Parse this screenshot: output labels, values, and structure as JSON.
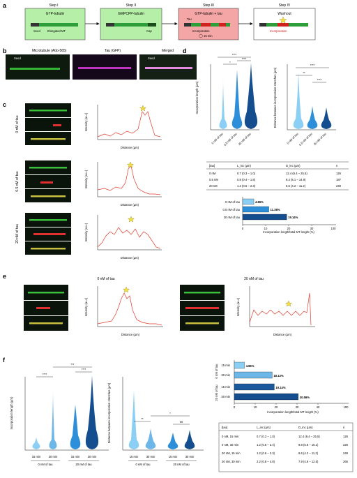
{
  "panel_a": {
    "letter": "a",
    "steps": [
      {
        "title": "Step I",
        "box_label": "GTP-tubulin",
        "sub_labels": [
          "Seed",
          "Elongated MT"
        ],
        "fill": "#b6f0a8"
      },
      {
        "title": "Step II",
        "box_label": "GMPCPP-tubulin",
        "sub_labels": [
          "Cap"
        ],
        "fill": "#b6f0a8"
      },
      {
        "title": "Step III",
        "box_label": "GTP-tubulin + tau",
        "sub_labels": [
          "Tau",
          "Incorporation",
          "15 min"
        ],
        "fill": "#f4a5a5"
      },
      {
        "title": "Step IV",
        "box_label": "Washout",
        "sub_labels": [
          "Incorporation"
        ],
        "fill": "#ffffff"
      }
    ]
  },
  "panel_b": {
    "letter": "b",
    "labels": [
      "Microtubule (Atto-565)",
      "Tau (GFP)",
      "Merged"
    ],
    "seed_label": "Seed"
  },
  "panel_c": {
    "letter": "c",
    "rows": [
      {
        "condition": "0 nM of tau",
        "xlabel": "Distance (µm)",
        "ylabel": "Intensity (a.u.)",
        "xticks": [
          "0",
          "2",
          "4",
          "6"
        ],
        "yticks": [
          "0",
          "20",
          "40",
          "60",
          "80",
          "100"
        ]
      },
      {
        "condition": "0.5 nM of tau",
        "xlabel": "Distance (µm)",
        "ylabel": "Intensity (a.u.)",
        "xticks": [
          "0",
          "2",
          "4",
          "6",
          "8"
        ],
        "yticks": [
          "0",
          "10",
          "20",
          "30",
          "40",
          "50",
          "60",
          "70",
          "80",
          "90",
          "100"
        ]
      },
      {
        "condition": "20 nM of tau",
        "xlabel": "Distance (µm)",
        "ylabel": "Intensity (a.u.)",
        "xticks": [
          "0",
          "1",
          "2",
          "3",
          "4",
          "5",
          "6",
          "7"
        ],
        "yticks": [
          "0",
          "20",
          "40",
          "60",
          "80"
        ]
      }
    ]
  },
  "panel_d": {
    "letter": "d",
    "violin1_ylabel": "Incorporation length (µm)",
    "violin1_yticks": [
      "0",
      "2",
      "4",
      "6",
      "8"
    ],
    "violin2_ylabel": "Distance between incorporation stretches (µm)",
    "violin2_yticks": [
      "0",
      "50",
      "100",
      "150",
      "200",
      "250"
    ],
    "categories": [
      "0 nM of tau",
      "0.5 nM of tau",
      "20 nM of tau"
    ],
    "sig1": [
      "****",
      "*",
      "****"
    ],
    "sig2": [
      "****",
      "**",
      "****"
    ],
    "table_headers": [
      "[tau]",
      "L_inc (µm)",
      "D_inc (µm)",
      "n"
    ],
    "table_rows": [
      [
        "0 nM",
        "0.7 (0.3 – 1.0)",
        "12.4 (6.4 – 25.5)",
        "126"
      ],
      [
        "0.5 nM",
        "0.8 (0.4 – 1.8)",
        "8.4 (5.1 – 14.9)",
        "187"
      ],
      [
        "20 nM",
        "1.2 (0.6 – 2.3)",
        "6.6 (4.2 – 11.2)",
        "249"
      ]
    ],
    "bars": [
      {
        "label": "0 nM of tau",
        "value": 4.86,
        "text": "4.86%"
      },
      {
        "label": "0.5 nM of tau",
        "value": 11.38,
        "text": "11.38%"
      },
      {
        "label": "20 nM of tau",
        "value": 19.14,
        "text": "19.14%"
      }
    ],
    "bar_xticks": [
      "0",
      "10",
      "20",
      "30",
      "100"
    ],
    "bar_xlabel": "Incorporation length/total MT length (%)"
  },
  "panel_e": {
    "letter": "e",
    "titles": [
      "0 nM of tau",
      "20 nM of tau"
    ],
    "xlabel": "Distance (µm)",
    "ylabel": "Intensity (a.u.)",
    "left_xticks": [
      "0",
      "2",
      "4",
      "6",
      "8",
      "10"
    ],
    "left_yticks": [
      "0",
      "20",
      "40",
      "60",
      "80",
      "100"
    ],
    "right_xticks": [
      "0",
      "1",
      "2",
      "3",
      "4",
      "5",
      "6",
      "7",
      "8",
      "9"
    ],
    "right_yticks": [
      "0",
      "20",
      "40",
      "60",
      "80",
      "100",
      "120"
    ]
  },
  "panel_f": {
    "letter": "f",
    "violin1_ylabel": "Incorporation length (µm)",
    "violin1_yticks": [
      "0",
      "5",
      "10",
      "15",
      "20",
      "25"
    ],
    "violin2_ylabel": "Distance between incorporation stretches (µm)",
    "violin2_yticks": [
      "0",
      "50",
      "100",
      "150",
      "200",
      "250"
    ],
    "time_labels": [
      "15 min",
      "30 min",
      "15 min",
      "30 min"
    ],
    "group_labels": [
      "0 nM of tau",
      "20 nM of tau"
    ],
    "sig1": [
      "****",
      "***",
      "****"
    ],
    "sig2": [
      "**",
      "*",
      "ns"
    ],
    "bars": [
      {
        "group": "0 nM of tau",
        "time": "15 min",
        "value": 4.86,
        "text": "4.86%"
      },
      {
        "group": "0 nM of tau",
        "time": "30 min",
        "value": 18.13,
        "text": "18.13%"
      },
      {
        "group": "20 nM of tau",
        "time": "15 min",
        "value": 19.14,
        "text": "19.14%"
      },
      {
        "group": "20 nM of tau",
        "time": "30 min",
        "value": 30.59,
        "text": "30.59%"
      }
    ],
    "bar_xticks": [
      "0",
      "10",
      "20",
      "30",
      "40",
      "100"
    ],
    "bar_xlabel": "Incorporation length/total MT length (%)",
    "table_headers": [
      "[tau]",
      "L_inc (µm)",
      "D_inc (µm)",
      "n"
    ],
    "table_rows": [
      [
        "0 nM, 15 min",
        "0.7 (0.3 – 1.0)",
        "12.4 (6.4 – 25.5)",
        "126"
      ],
      [
        "0 nM, 30 min",
        "1.2 (0.5 – 3.4)",
        "9.8 (5.8 – 15.1)",
        "226"
      ],
      [
        "20 nM, 15 min",
        "1.2 (0.6 – 2.3)",
        "6.6 (4.2 – 11.2)",
        "249"
      ],
      [
        "20 nM, 30 min",
        "2.2 (0.8 – 4.0)",
        "7.9 (4.9 – 12.5)",
        "265"
      ]
    ]
  },
  "chart_data": [
    {
      "type": "bar",
      "categories": [
        "0 nM of tau",
        "0.5 nM of tau",
        "20 nM of tau"
      ],
      "values": [
        4.86,
        11.38,
        19.14
      ],
      "xlabel": "Incorporation length/total MT length (%)"
    },
    {
      "type": "bar",
      "categories": [
        "0 nM 15 min",
        "0 nM 30 min",
        "20 nM 15 min",
        "20 nM 30 min"
      ],
      "values": [
        4.86,
        18.13,
        19.14,
        30.59
      ],
      "xlabel": "Incorporation length/total MT length (%)"
    }
  ]
}
